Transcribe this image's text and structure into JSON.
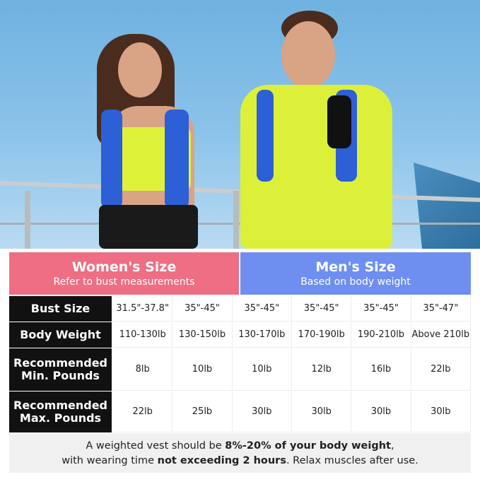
{
  "colors": {
    "women": "#ee6e84",
    "men": "#6e8ff0",
    "label_bg": "#111111",
    "footer_bg": "#f0f0f0"
  },
  "women": {
    "title": "Women's Size",
    "subtitle": "Refer to bust measurements"
  },
  "men": {
    "title": "Men's Size",
    "subtitle": "Based on body weight"
  },
  "rows": [
    {
      "label": "Bust Size",
      "values": [
        "31.5\"-37.8\"",
        "35\"-45\"",
        "35\"-45\"",
        "35\"-45\"",
        "35\"-45\"",
        "35\"-47\""
      ]
    },
    {
      "label": "Body Weight",
      "values": [
        "110-130lb",
        "130-150lb",
        "130-170lb",
        "170-190lb",
        "190-210lb",
        "Above 210lb"
      ]
    },
    {
      "label": "Recommended Min. Pounds",
      "values": [
        "8lb",
        "10lb",
        "10lb",
        "12lb",
        "16lb",
        "22lb"
      ]
    },
    {
      "label": "Recommended Max. Pounds",
      "values": [
        "22lb",
        "25lb",
        "30lb",
        "30lb",
        "30lb",
        "30lb"
      ]
    }
  ],
  "footer": {
    "p1": "A weighted vest should be ",
    "b1": "8%-20% of your body weight",
    "p2": ",",
    "p3": "with wearing time ",
    "b2": "not exceeding 2 hours",
    "p4": ". Relax muscles after use."
  }
}
